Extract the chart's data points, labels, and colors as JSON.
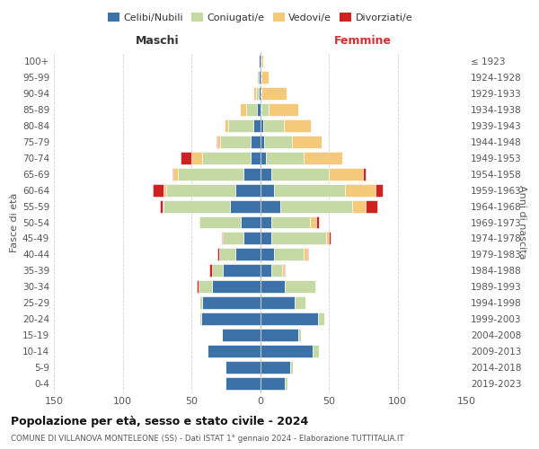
{
  "age_groups": [
    "100+",
    "95-99",
    "90-94",
    "85-89",
    "80-84",
    "75-79",
    "70-74",
    "65-69",
    "60-64",
    "55-59",
    "50-54",
    "45-49",
    "40-44",
    "35-39",
    "30-34",
    "25-29",
    "20-24",
    "15-19",
    "10-14",
    "5-9",
    "0-4"
  ],
  "birth_years": [
    "≤ 1923",
    "1924-1928",
    "1929-1933",
    "1934-1938",
    "1939-1943",
    "1944-1948",
    "1949-1953",
    "1954-1958",
    "1959-1963",
    "1964-1968",
    "1969-1973",
    "1974-1978",
    "1979-1983",
    "1984-1988",
    "1989-1993",
    "1994-1998",
    "1999-2003",
    "2004-2008",
    "2009-2013",
    "2014-2018",
    "2019-2023"
  ],
  "maschi": {
    "celibi": [
      1,
      1,
      1,
      2,
      5,
      7,
      7,
      12,
      18,
      22,
      14,
      12,
      18,
      27,
      35,
      42,
      43,
      28,
      38,
      25,
      25
    ],
    "coniugati": [
      0,
      1,
      2,
      8,
      18,
      22,
      35,
      48,
      50,
      48,
      30,
      15,
      12,
      8,
      10,
      2,
      1,
      0,
      0,
      0,
      0
    ],
    "vedovi": [
      0,
      0,
      2,
      5,
      3,
      2,
      8,
      3,
      2,
      1,
      1,
      0,
      0,
      0,
      0,
      0,
      0,
      0,
      0,
      0,
      0
    ],
    "divorziati": [
      0,
      0,
      0,
      0,
      0,
      1,
      8,
      1,
      8,
      2,
      0,
      1,
      1,
      2,
      1,
      0,
      0,
      0,
      0,
      0,
      0
    ]
  },
  "femmine": {
    "nubili": [
      1,
      1,
      0,
      1,
      2,
      3,
      4,
      8,
      10,
      15,
      8,
      8,
      10,
      8,
      18,
      25,
      42,
      28,
      38,
      22,
      18
    ],
    "coniugate": [
      0,
      0,
      1,
      5,
      15,
      20,
      28,
      42,
      52,
      52,
      28,
      40,
      22,
      8,
      22,
      8,
      5,
      2,
      5,
      2,
      2
    ],
    "vedove": [
      1,
      5,
      18,
      22,
      20,
      22,
      28,
      25,
      22,
      10,
      5,
      2,
      2,
      1,
      1,
      0,
      0,
      0,
      0,
      0,
      0
    ],
    "divorziate": [
      0,
      0,
      0,
      0,
      0,
      0,
      0,
      2,
      5,
      8,
      2,
      1,
      1,
      1,
      0,
      0,
      0,
      0,
      0,
      0,
      0
    ]
  },
  "colors": {
    "celibi": "#3d72a9",
    "coniugati": "#c5d9a5",
    "vedovi": "#f5c97a",
    "divorziati": "#cc2222"
  },
  "legend_labels": [
    "Celibi/Nubili",
    "Coniugati/e",
    "Vedovi/e",
    "Divorziati/e"
  ],
  "title": "Popolazione per età, sesso e stato civile - 2024",
  "subtitle": "COMUNE DI VILLANOVA MONTELEONE (SS) - Dati ISTAT 1° gennaio 2024 - Elaborazione TUTTITALIA.IT",
  "ylabel_left": "Fasce di età",
  "ylabel_right": "Anni di nascita",
  "header_maschi": "Maschi",
  "header_femmine": "Femmine",
  "xlim": 150,
  "bg_color": "#ffffff",
  "grid_color": "#cccccc",
  "bar_height": 0.78
}
